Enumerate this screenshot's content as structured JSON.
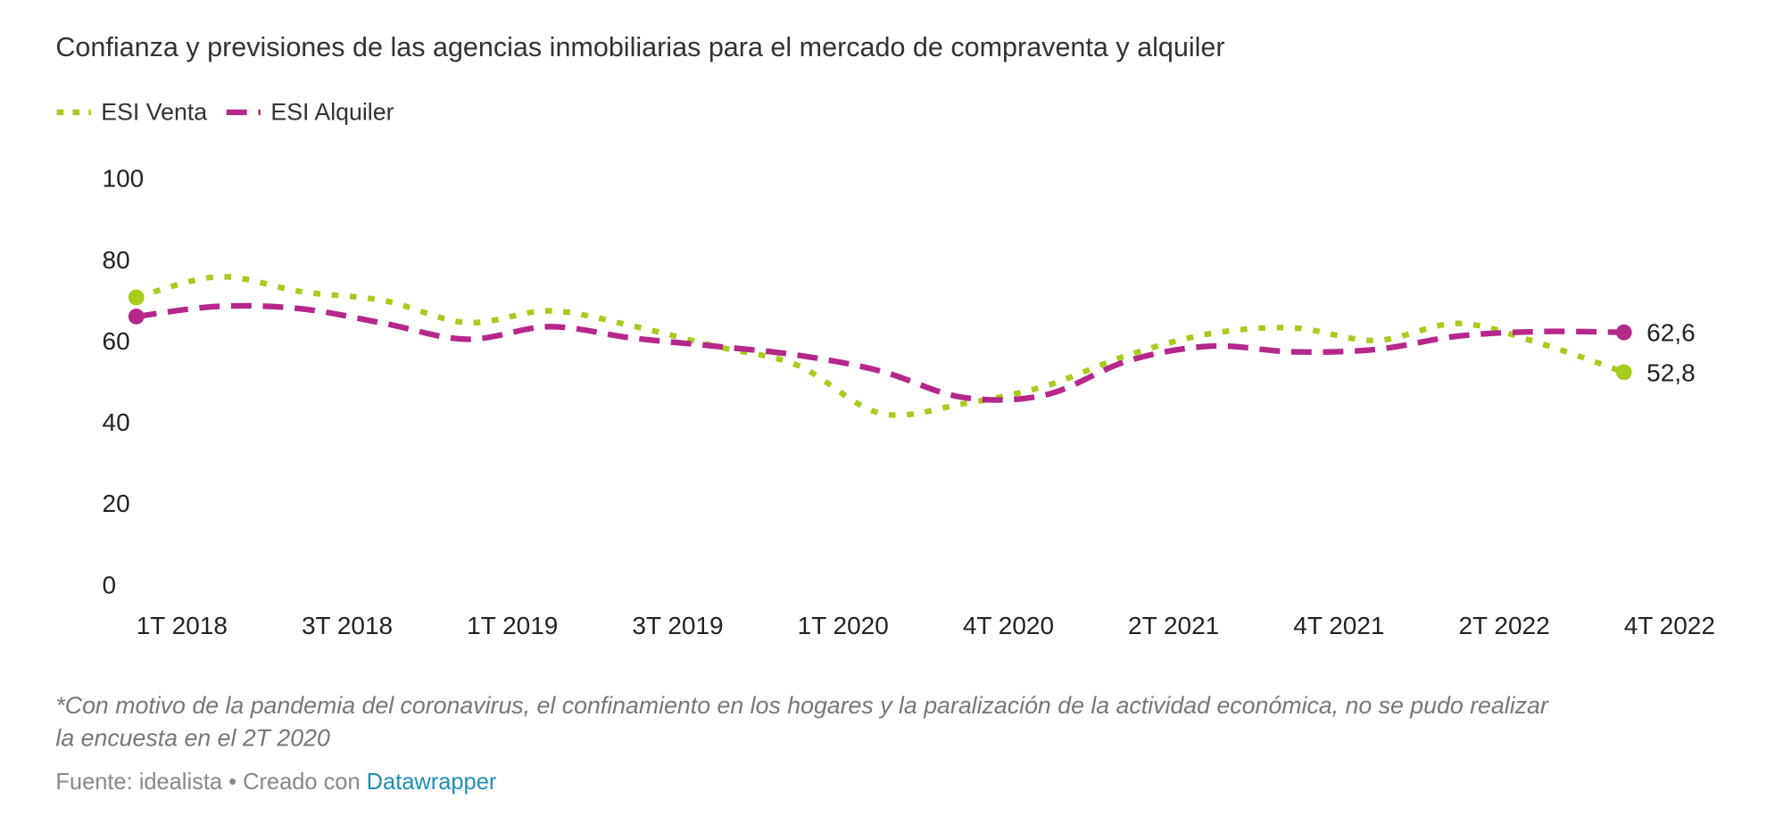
{
  "chart_data": {
    "type": "line",
    "subtitle": "Confianza y previsiones de las agencias inmobiliarias para el mercado de compraventa y alquiler",
    "categories": [
      "1T 2018",
      null,
      "3T 2018",
      null,
      "1T 2019",
      null,
      "3T 2019",
      null,
      "1T 2020",
      null,
      "4T 2020",
      null,
      "2T 2021",
      null,
      "4T 2021",
      null,
      "2T 2022",
      null,
      "4T 2022"
    ],
    "series": [
      {
        "name": "ESI Venta",
        "color": "#a8cc1c",
        "values": [
          71.2,
          76.3,
          72.6,
          70.4,
          65,
          67.9,
          64.2,
          59.2,
          54.5,
          42.7,
          45,
          49.4,
          57,
          62.3,
          63.7,
          60.6,
          64.8,
          59.8,
          52.8
        ],
        "value_labels": [
          null,
          null,
          null,
          null,
          null,
          null,
          null,
          null,
          null,
          null,
          null,
          null,
          null,
          null,
          null,
          null,
          null,
          null,
          "52,8"
        ]
      },
      {
        "name": "ESI Alquiler",
        "color": "#b5288a",
        "values": [
          66.5,
          69,
          68.4,
          64.8,
          60.9,
          64,
          61.2,
          59.2,
          57,
          53.1,
          46.6,
          47.2,
          55.6,
          59.2,
          57.8,
          58.4,
          61.7,
          62.8,
          62.6
        ],
        "value_labels": [
          null,
          null,
          null,
          null,
          null,
          null,
          null,
          null,
          null,
          null,
          null,
          null,
          null,
          null,
          null,
          null,
          null,
          null,
          "62,6"
        ]
      }
    ],
    "ylim": [
      0,
      100
    ],
    "yticks": [
      0,
      20,
      40,
      60,
      80,
      100
    ],
    "grid": false,
    "legend": "top-left",
    "note": "*Con motivo de la pandemia del coronavirus, el confinamiento en los hogares y la paralización de la actividad económica, no se pudo realizar",
    "note_2": "la encuesta en el 2T 2020",
    "source": "Fuente: idealista • Creado con",
    "source_link": "Datawrapper"
  }
}
